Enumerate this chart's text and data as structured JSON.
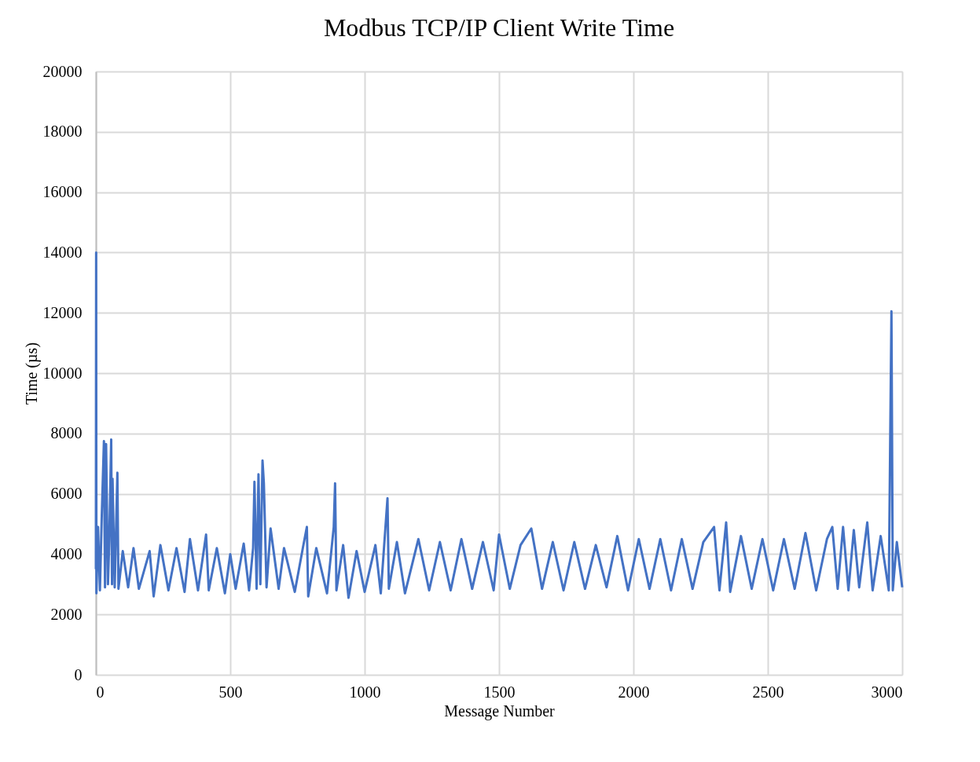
{
  "chart_data": {
    "type": "line",
    "title": "Modbus TCP/IP Client Write Time",
    "xlabel": "Message Number",
    "ylabel": "Time (µs)",
    "x": [
      0,
      1,
      2,
      8,
      15,
      22,
      30,
      34,
      38,
      45,
      50,
      57,
      60,
      62,
      70,
      80,
      84,
      100,
      120,
      140,
      160,
      200,
      215,
      240,
      270,
      300,
      330,
      350,
      380,
      410,
      420,
      450,
      480,
      500,
      520,
      550,
      570,
      585,
      590,
      598,
      605,
      612,
      620,
      625,
      635,
      650,
      680,
      700,
      740,
      770,
      785,
      790,
      820,
      860,
      885,
      890,
      895,
      920,
      940,
      970,
      1000,
      1040,
      1060,
      1085,
      1090,
      1120,
      1150,
      1200,
      1240,
      1280,
      1320,
      1360,
      1400,
      1440,
      1480,
      1500,
      1540,
      1580,
      1620,
      1660,
      1700,
      1740,
      1780,
      1820,
      1860,
      1900,
      1940,
      1980,
      2020,
      2060,
      2100,
      2140,
      2180,
      2220,
      2260,
      2300,
      2320,
      2345,
      2360,
      2400,
      2440,
      2480,
      2520,
      2560,
      2600,
      2640,
      2680,
      2720,
      2740,
      2760,
      2780,
      2800,
      2820,
      2840,
      2870,
      2890,
      2920,
      2950,
      2960,
      2965,
      2980,
      3000
    ],
    "series": [
      {
        "color": "#4472c4",
        "values": [
          3500,
          14000,
          2700,
          4900,
          2800,
          5300,
          7750,
          2900,
          7650,
          3000,
          4500,
          7800,
          3000,
          6500,
          2900,
          6700,
          2850,
          4100,
          2900,
          4200,
          2850,
          4100,
          2600,
          4300,
          2800,
          4200,
          2750,
          4500,
          2800,
          4650,
          2800,
          4200,
          2700,
          4000,
          2850,
          4350,
          2800,
          4200,
          6400,
          2850,
          6650,
          3000,
          7100,
          6350,
          2900,
          4850,
          2850,
          4200,
          2750,
          4200,
          4900,
          2600,
          4200,
          2700,
          4900,
          6350,
          2800,
          4300,
          2550,
          4100,
          2750,
          4300,
          2700,
          5850,
          2850,
          4400,
          2700,
          4500,
          2800,
          4400,
          2800,
          4500,
          2850,
          4400,
          2800,
          4650,
          2850,
          4300,
          4850,
          2850,
          4400,
          2800,
          4400,
          2850,
          4300,
          2900,
          4600,
          2800,
          4500,
          2850,
          4500,
          2800,
          4500,
          2850,
          4400,
          4900,
          2800,
          5050,
          2750,
          4600,
          2850,
          4500,
          2800,
          4500,
          2850,
          4700,
          2800,
          4500,
          4900,
          2850,
          4900,
          2800,
          4800,
          2900,
          5050,
          2800,
          4600,
          2800,
          12050,
          2800,
          4400,
          2900
        ]
      }
    ],
    "xlim": [
      0,
      3000
    ],
    "xticks": [
      0,
      500,
      1000,
      1500,
      2000,
      2500,
      3000
    ],
    "ylim": [
      0,
      20000
    ],
    "yticks": [
      0,
      2000,
      4000,
      6000,
      8000,
      10000,
      12000,
      14000,
      16000,
      18000,
      20000
    ],
    "grid": true,
    "marker": "none",
    "line_style": "solid"
  }
}
